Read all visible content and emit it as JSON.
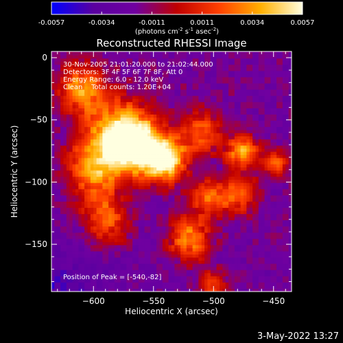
{
  "chart_data": {
    "type": "heatmap",
    "title": "Reconstructed RHESSI Image",
    "colorbar": {
      "ticks": [
        "-0.0057",
        "-0.0034",
        "-0.0011",
        "0.0011",
        "0.0034",
        "0.0057"
      ],
      "range": [
        -0.0057,
        0.0057
      ],
      "unit_label": "(photons cm^-2 s^-1 asec^-2)",
      "colormap": [
        "#0000ff",
        "#5a00a0",
        "#7000a0",
        "#c00000",
        "#ff4000",
        "#ffb000",
        "#ffffe0"
      ]
    },
    "xlabel": "Heliocentric X (arcsec)",
    "ylabel": "Heliocentric Y (arcsec)",
    "xlim": [
      -635,
      -435
    ],
    "ylim": [
      -188,
      5
    ],
    "xticks": [
      -600,
      -550,
      -500,
      -450
    ],
    "yticks": [
      0,
      -50,
      -100,
      -150
    ],
    "annotations": [
      "30-Nov-2005 21:01:20.000 to 21:02:44.000",
      "Detectors: 3F 4F 5F 6F 7F 8F, Att 0",
      "Energy Range: 6.0 - 12.0 keV",
      "Clean    Total counts: 1.20E+04"
    ],
    "peak_label": "Position of Peak = [-540,-82]",
    "peak": {
      "x": -540,
      "y": -82
    },
    "sources": [
      {
        "x": -540,
        "y": -82,
        "peak": 0.0057,
        "sigma": 12
      },
      {
        "x": -565,
        "y": -70,
        "peak": 0.0046,
        "sigma": 16
      },
      {
        "x": -580,
        "y": -60,
        "peak": 0.0032,
        "sigma": 20
      },
      {
        "x": -610,
        "y": -25,
        "peak": 0.0032,
        "sigma": 14
      },
      {
        "x": -600,
        "y": -90,
        "peak": 0.0028,
        "sigma": 16
      },
      {
        "x": -590,
        "y": -130,
        "peak": 0.0022,
        "sigma": 14
      },
      {
        "x": -520,
        "y": -145,
        "peak": 0.0034,
        "sigma": 12
      },
      {
        "x": -476,
        "y": -75,
        "peak": 0.0038,
        "sigma": 9
      },
      {
        "x": -480,
        "y": -110,
        "peak": 0.002,
        "sigma": 12
      },
      {
        "x": -510,
        "y": -60,
        "peak": 0.0024,
        "sigma": 12
      },
      {
        "x": -505,
        "y": -112,
        "peak": 0.0022,
        "sigma": 10
      },
      {
        "x": -500,
        "y": -182,
        "peak": 0.0018,
        "sigma": 8
      },
      {
        "x": -448,
        "y": -85,
        "peak": 0.0018,
        "sigma": 8
      }
    ]
  },
  "timestamp": "3-May-2022 13:27"
}
